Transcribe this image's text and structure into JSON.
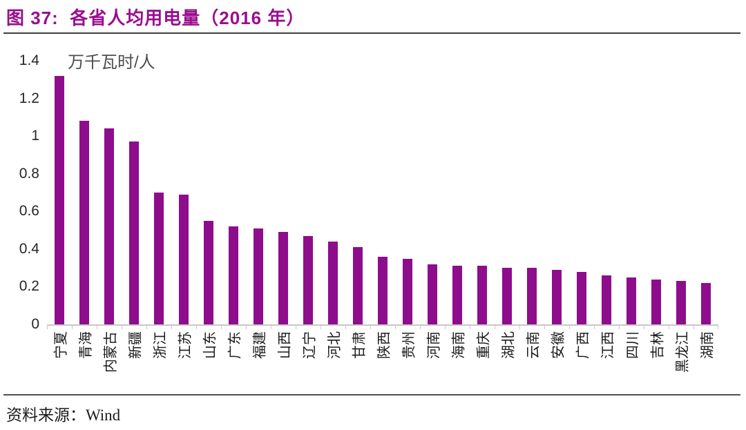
{
  "header": {
    "title": "图 37:  各省人均用电量（2016 年）"
  },
  "chart_data": {
    "type": "bar",
    "title": "图 37: 各省人均用电量（2016 年）",
    "unit_label": "万千瓦时/人",
    "xlabel": "",
    "ylabel": "万千瓦时/人",
    "ylim": [
      0,
      1.4
    ],
    "ytick_values": [
      0,
      0.2,
      0.4,
      0.6,
      0.8,
      1,
      1.2,
      1.4
    ],
    "ytick_labels": [
      "0",
      "0.2",
      "0.4",
      "0.6",
      "0.8",
      "1",
      "1.2",
      "1.4"
    ],
    "grid": false,
    "legend": false,
    "categories": [
      "宁夏",
      "青海",
      "内蒙古",
      "新疆",
      "浙江",
      "江苏",
      "山东",
      "广东",
      "福建",
      "山西",
      "辽宁",
      "河北",
      "甘肃",
      "陕西",
      "贵州",
      "河南",
      "海南",
      "重庆",
      "湖北",
      "云南",
      "安徽",
      "广西",
      "江西",
      "四川",
      "吉林",
      "黑龙江",
      "湖南"
    ],
    "values": [
      1.32,
      1.08,
      1.04,
      0.97,
      0.7,
      0.69,
      0.55,
      0.52,
      0.51,
      0.49,
      0.47,
      0.44,
      0.41,
      0.36,
      0.35,
      0.32,
      0.31,
      0.31,
      0.3,
      0.3,
      0.29,
      0.28,
      0.26,
      0.25,
      0.24,
      0.23,
      0.22
    ]
  },
  "footer": {
    "source_label": "资料来源：Wind"
  },
  "colors": {
    "title_text": "#9A0D8F",
    "bar_fill": "#8E0D8C",
    "axis_line": "#C8C8C8",
    "tick_label_text": "#262626",
    "divider_dark": "#3F3F3F"
  }
}
